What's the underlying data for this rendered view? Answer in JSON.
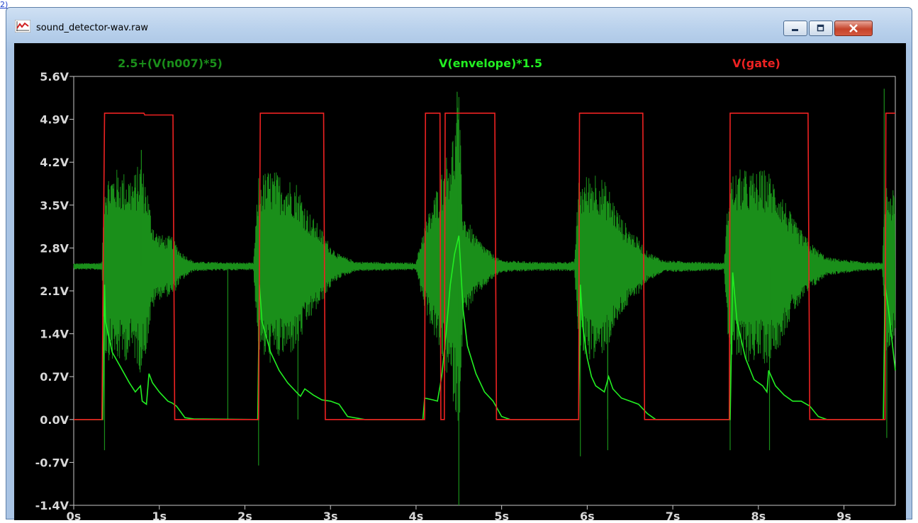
{
  "window": {
    "title": "sound_detector-wav.raw",
    "icon": "waveform-plot-icon",
    "controls": [
      "minimize-icon",
      "maximize-icon",
      "close-icon"
    ]
  },
  "corner_mark": "2)",
  "chart_data": {
    "type": "line",
    "title": "",
    "xlabel": "",
    "ylabel": "",
    "xlim": [
      0,
      9.6
    ],
    "ylim": [
      -1.4,
      5.6
    ],
    "x_ticks": [
      "0s",
      "1s",
      "2s",
      "3s",
      "4s",
      "5s",
      "6s",
      "7s",
      "8s",
      "9s"
    ],
    "y_ticks": [
      "5.6V",
      "4.9V",
      "4.2V",
      "3.5V",
      "2.8V",
      "2.1V",
      "1.4V",
      "0.7V",
      "0.0V",
      "-0.7V",
      "-1.4V"
    ],
    "grid": false,
    "background": "#000000",
    "series": [
      {
        "name": "2.5+(V(n007)*5)",
        "color": "#1a8f1a",
        "baseline": 2.5,
        "envelope_points": [
          [
            0,
            0.05
          ],
          [
            0.33,
            0.06
          ],
          [
            0.36,
            1.5
          ],
          [
            0.5,
            1.6
          ],
          [
            0.7,
            1.5
          ],
          [
            0.78,
            1.75
          ],
          [
            0.85,
            1.4
          ],
          [
            0.9,
            0.9
          ],
          [
            0.95,
            0.6
          ],
          [
            1.05,
            0.5
          ],
          [
            1.15,
            0.5
          ],
          [
            1.25,
            0.25
          ],
          [
            1.4,
            0.08
          ],
          [
            2.1,
            0.06
          ],
          [
            2.16,
            1.5
          ],
          [
            2.3,
            1.6
          ],
          [
            2.45,
            1.5
          ],
          [
            2.6,
            1.4
          ],
          [
            2.75,
            0.9
          ],
          [
            2.9,
            0.6
          ],
          [
            3.0,
            0.35
          ],
          [
            3.1,
            0.2
          ],
          [
            3.3,
            0.08
          ],
          [
            4.0,
            0.06
          ],
          [
            4.08,
            0.6
          ],
          [
            4.2,
            1.1
          ],
          [
            4.35,
            1.8
          ],
          [
            4.45,
            2.3
          ],
          [
            4.5,
            2.8
          ],
          [
            4.55,
            0.9
          ],
          [
            4.7,
            0.5
          ],
          [
            4.9,
            0.2
          ],
          [
            5.0,
            0.1
          ],
          [
            5.5,
            0.07
          ],
          [
            5.85,
            0.08
          ],
          [
            5.9,
            1.4
          ],
          [
            6.0,
            1.5
          ],
          [
            6.1,
            1.6
          ],
          [
            6.25,
            1.3
          ],
          [
            6.4,
            0.8
          ],
          [
            6.6,
            0.45
          ],
          [
            6.7,
            0.25
          ],
          [
            6.9,
            0.1
          ],
          [
            7.6,
            0.06
          ],
          [
            7.66,
            1.5
          ],
          [
            7.8,
            1.6
          ],
          [
            7.95,
            1.55
          ],
          [
            8.1,
            1.6
          ],
          [
            8.25,
            1.3
          ],
          [
            8.4,
            0.8
          ],
          [
            8.6,
            0.4
          ],
          [
            8.8,
            0.15
          ],
          [
            9.2,
            0.08
          ],
          [
            9.45,
            0.06
          ],
          [
            9.48,
            1.4
          ],
          [
            9.6,
            1.2
          ]
        ],
        "spikes": [
          [
            0.36,
            -0.5
          ],
          [
            0.79,
            4.4
          ],
          [
            1.8,
            0.0
          ],
          [
            2.16,
            -0.75
          ],
          [
            2.62,
            0.0
          ],
          [
            4.48,
            5.35
          ],
          [
            4.5,
            -1.4
          ],
          [
            5.92,
            -0.6
          ],
          [
            6.24,
            -0.5
          ],
          [
            6.24,
            0.0
          ],
          [
            7.67,
            -0.5
          ],
          [
            8.13,
            -0.5
          ],
          [
            9.47,
            5.4
          ],
          [
            9.5,
            -0.3
          ]
        ]
      },
      {
        "name": "V(envelope)*1.5",
        "color": "#22ee22",
        "points": [
          [
            0,
            0.0
          ],
          [
            0.34,
            0.0
          ],
          [
            0.36,
            2.2
          ],
          [
            0.37,
            1.6
          ],
          [
            0.45,
            1.1
          ],
          [
            0.55,
            0.85
          ],
          [
            0.65,
            0.6
          ],
          [
            0.72,
            0.45
          ],
          [
            0.78,
            0.55
          ],
          [
            0.8,
            0.3
          ],
          [
            0.85,
            0.25
          ],
          [
            0.88,
            0.75
          ],
          [
            0.92,
            0.6
          ],
          [
            1.0,
            0.45
          ],
          [
            1.1,
            0.3
          ],
          [
            1.15,
            0.27
          ],
          [
            1.2,
            0.22
          ],
          [
            1.3,
            0.03
          ],
          [
            1.4,
            0.01
          ],
          [
            2.15,
            0.0
          ],
          [
            2.17,
            2.2
          ],
          [
            2.2,
            1.6
          ],
          [
            2.3,
            1.1
          ],
          [
            2.4,
            0.8
          ],
          [
            2.5,
            0.6
          ],
          [
            2.6,
            0.45
          ],
          [
            2.65,
            0.38
          ],
          [
            2.7,
            0.5
          ],
          [
            2.8,
            0.4
          ],
          [
            2.9,
            0.32
          ],
          [
            3.0,
            0.3
          ],
          [
            3.1,
            0.25
          ],
          [
            3.2,
            0.05
          ],
          [
            3.4,
            0.0
          ],
          [
            4.08,
            0.0
          ],
          [
            4.1,
            0.35
          ],
          [
            4.2,
            0.32
          ],
          [
            4.25,
            0.3
          ],
          [
            4.3,
            0.7
          ],
          [
            4.35,
            1.4
          ],
          [
            4.4,
            2.2
          ],
          [
            4.45,
            2.7
          ],
          [
            4.5,
            3.0
          ],
          [
            4.55,
            1.8
          ],
          [
            4.6,
            1.2
          ],
          [
            4.7,
            0.75
          ],
          [
            4.8,
            0.45
          ],
          [
            4.9,
            0.3
          ],
          [
            5.0,
            0.05
          ],
          [
            5.1,
            0.0
          ],
          [
            5.9,
            0.0
          ],
          [
            5.92,
            2.2
          ],
          [
            5.95,
            1.5
          ],
          [
            6.0,
            1.0
          ],
          [
            6.05,
            0.7
          ],
          [
            6.1,
            0.55
          ],
          [
            6.2,
            0.45
          ],
          [
            6.25,
            0.7
          ],
          [
            6.3,
            0.5
          ],
          [
            6.4,
            0.35
          ],
          [
            6.5,
            0.3
          ],
          [
            6.6,
            0.25
          ],
          [
            6.7,
            0.1
          ],
          [
            6.8,
            0.0
          ],
          [
            7.67,
            0.0
          ],
          [
            7.7,
            2.4
          ],
          [
            7.75,
            1.6
          ],
          [
            7.85,
            1.0
          ],
          [
            7.95,
            0.65
          ],
          [
            8.05,
            0.55
          ],
          [
            8.1,
            0.45
          ],
          [
            8.12,
            0.8
          ],
          [
            8.2,
            0.55
          ],
          [
            8.3,
            0.4
          ],
          [
            8.4,
            0.3
          ],
          [
            8.5,
            0.3
          ],
          [
            8.6,
            0.22
          ],
          [
            8.7,
            0.05
          ],
          [
            8.8,
            0.0
          ],
          [
            9.46,
            0.0
          ],
          [
            9.48,
            2.2
          ],
          [
            9.52,
            1.8
          ],
          [
            9.56,
            1.3
          ],
          [
            9.6,
            0.8
          ]
        ]
      },
      {
        "name": "V(gate)",
        "color": "#ee2222",
        "points": [
          [
            0,
            0.0
          ],
          [
            0.33,
            0.0
          ],
          [
            0.36,
            5.0
          ],
          [
            0.82,
            5.0
          ],
          [
            0.83,
            4.97
          ],
          [
            1.16,
            4.97
          ],
          [
            1.18,
            0.0
          ],
          [
            2.16,
            0.0
          ],
          [
            2.18,
            5.0
          ],
          [
            2.92,
            5.0
          ],
          [
            2.94,
            0.0
          ],
          [
            4.1,
            0.0
          ],
          [
            4.11,
            5.0
          ],
          [
            4.28,
            5.0
          ],
          [
            4.29,
            0.0
          ],
          [
            4.33,
            0.0
          ],
          [
            4.34,
            5.0
          ],
          [
            4.92,
            5.0
          ],
          [
            4.94,
            0.0
          ],
          [
            5.9,
            0.0
          ],
          [
            5.91,
            5.0
          ],
          [
            6.65,
            5.0
          ],
          [
            6.67,
            0.0
          ],
          [
            7.66,
            0.0
          ],
          [
            7.67,
            5.0
          ],
          [
            8.58,
            5.0
          ],
          [
            8.6,
            0.0
          ],
          [
            9.48,
            0.0
          ],
          [
            9.49,
            5.0
          ],
          [
            9.6,
            5.0
          ]
        ]
      }
    ]
  }
}
